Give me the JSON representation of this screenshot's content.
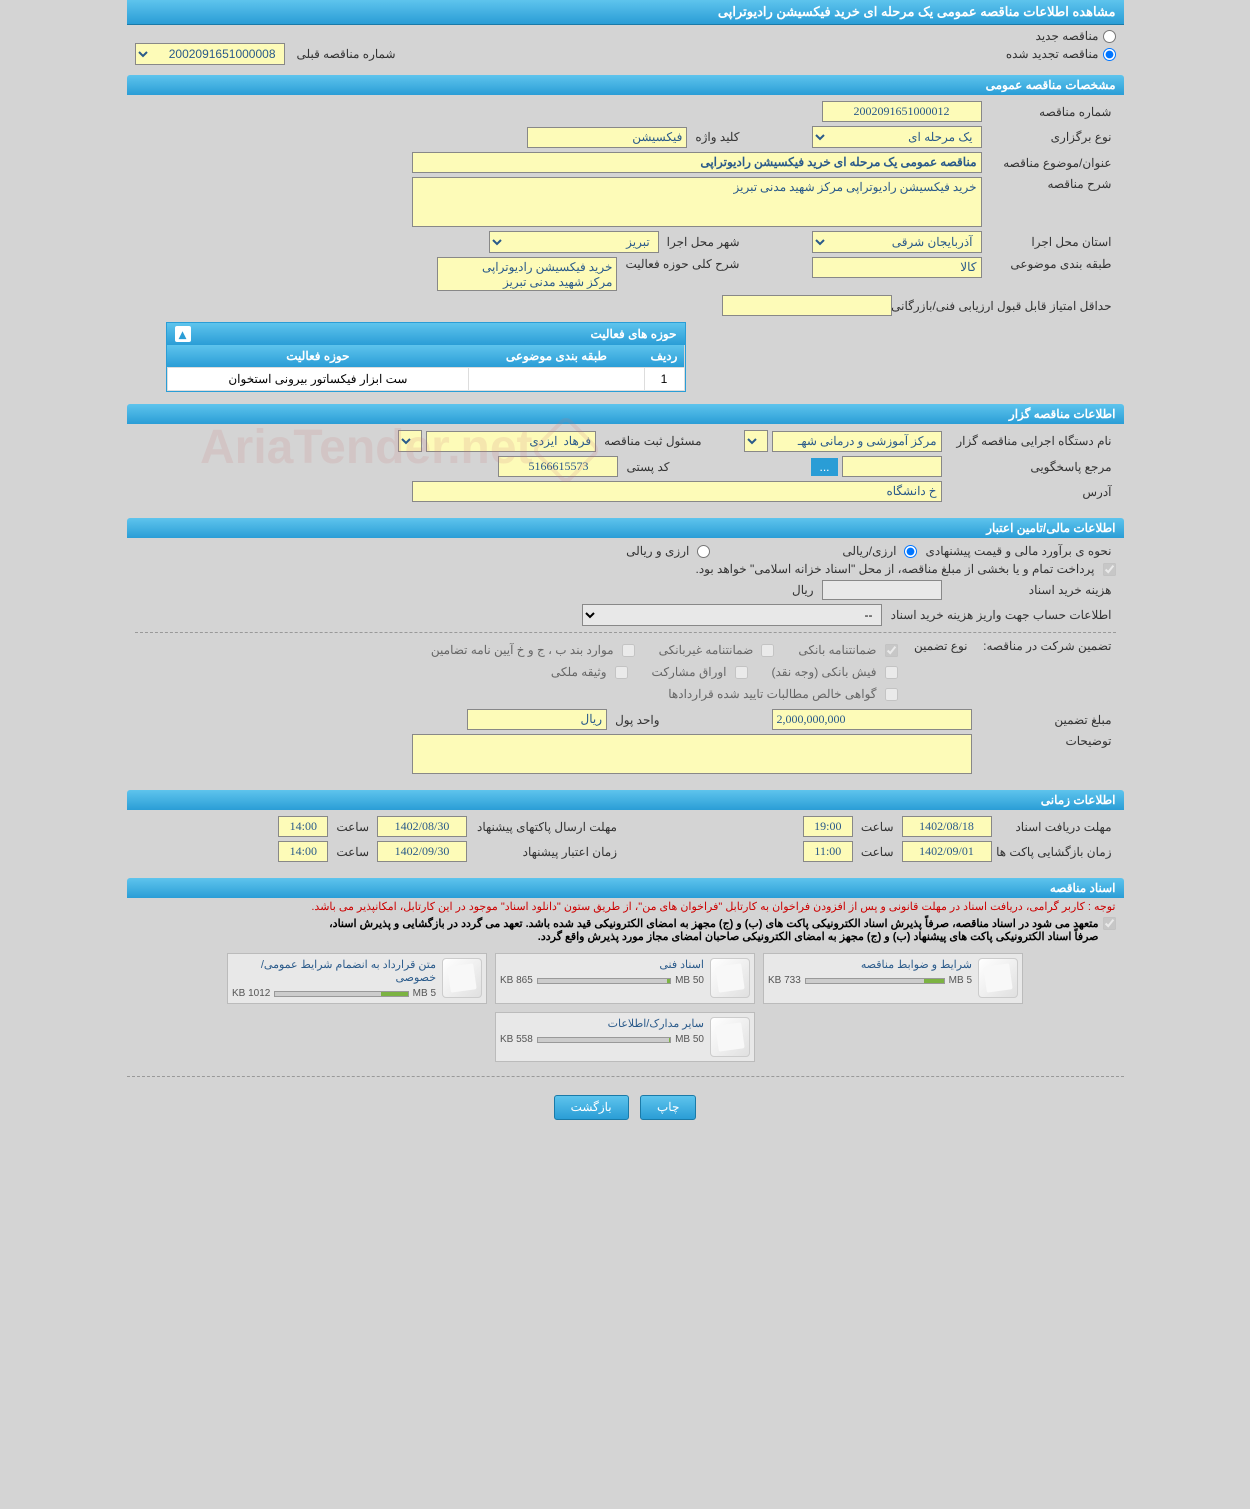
{
  "header": {
    "title": "مشاهده اطلاعات مناقصه عمومی یک مرحله ای خرید فیکسیشن رادیوتراپی"
  },
  "top_radios": {
    "new": "مناقصه جدید",
    "renewed": "مناقصه تجدید شده",
    "selected": "renewed",
    "prev_label": "شماره مناقصه قبلی",
    "prev_value": "2002091651000008"
  },
  "sections": {
    "general": "مشخصات مناقصه عمومی",
    "holder": "اطلاعات مناقصه گزار",
    "financial": "اطلاعات مالی/تامین اعتبار",
    "timing": "اطلاعات زمانی",
    "docs": "اسناد مناقصه"
  },
  "general": {
    "tender_no_label": "شماره مناقصه",
    "tender_no": "2002091651000012",
    "type_label": "نوع برگزاری",
    "type": "یک مرحله ای",
    "keyword_label": "کلید واژه",
    "keyword": "فیکسیشن",
    "subject_label": "عنوان/موضوع مناقصه",
    "subject": "مناقصه عمومی یک مرحله ای خرید فیکسیشن رادیوتراپی",
    "desc_label": "شرح مناقصه",
    "desc": "خرید فیکسیشن رادیوتراپی مرکز شهید مدنی تبریز",
    "province_label": "استان محل اجرا",
    "province": "آذربایجان شرقی",
    "city_label": "شهر محل اجرا",
    "city": "تبریز",
    "category_label": "طبقه بندی موضوعی",
    "category": "کالا",
    "scope_label": "شرح کلی حوزه فعالیت",
    "scope": "خرید فیکسیشن رادیوتراپی\nمرکز شهید مدنی تبریز",
    "min_score_label": "حداقل امتیاز قابل قبول ارزیابی فنی/بازرگانی",
    "min_score": ""
  },
  "activity_panel": {
    "title": "حوزه های فعالیت",
    "col_row": "ردیف",
    "col_cat": "طبقه بندی موضوعی",
    "col_scope": "حوزه فعالیت",
    "rows": [
      {
        "n": "1",
        "cat": "",
        "scope": "ست ابزار فیکساتور بیرونی استخوان"
      }
    ]
  },
  "holder": {
    "org_label": "نام دستگاه اجرایی مناقصه گزار",
    "org": "مرکز آموزشی و درمانی شهـ",
    "reg_resp_label": "مسئول ثبت مناقصه",
    "reg_resp": "فرهاد  ایزدی",
    "resp_label": "مرجع پاسخگویی",
    "resp": "",
    "more_btn": "...",
    "postal_label": "کد پستی",
    "postal": "5166615573",
    "address_label": "آدرس",
    "address": "خ دانشگاه"
  },
  "financial": {
    "method_label": "نحوه ی برآورد مالی و قیمت پیشنهادی",
    "method_riali": "ارزی/ریالی",
    "method_arzi": "ارزی و ریالی",
    "method_selected": "riali",
    "treasury_note": "پرداخت تمام و یا بخشی از مبلغ مناقصه، از محل \"اسناد خزانه اسلامی\" خواهد بود.",
    "cost_label": "هزینه خرید اسناد",
    "cost": "",
    "cost_unit": "ریال",
    "account_label": "اطلاعات حساب جهت واریز هزینه خرید اسناد",
    "account_selected": "--",
    "guarantee_section_label": "تضمین شرکت در مناقصه:",
    "guarantee_type_label": "نوع تضمین",
    "g_bank": "ضمانتنامه بانکی",
    "g_nonbank": "ضمانتنامه غیربانکی",
    "g_bylaw": "موارد بند ب ، ج و خ آیین نامه تضامین",
    "g_cash": "فیش بانکی (وجه نقد)",
    "g_securities": "اوراق مشارکت",
    "g_property": "وثیقه ملکی",
    "g_receivables": "گواهی خالص مطالبات تایید شده قراردادها",
    "amount_label": "مبلغ تضمین",
    "amount": "2,000,000,000",
    "currency_label": "واحد پول",
    "currency": "ریال",
    "notes_label": "توضیحات",
    "notes": ""
  },
  "timing": {
    "receive_label": "مهلت دریافت اسناد",
    "receive_date": "1402/08/18",
    "receive_time_label": "ساعت",
    "receive_time": "19:00",
    "send_label": "مهلت ارسال پاکتهای پیشنهاد",
    "send_date": "1402/08/30",
    "send_time_label": "ساعت",
    "send_time": "14:00",
    "open_label": "زمان بازگشایی پاکت ها",
    "open_date": "1402/09/01",
    "open_time_label": "ساعت",
    "open_time": "11:00",
    "valid_label": "زمان اعتبار پیشنهاد",
    "valid_date": "1402/09/30",
    "valid_time_label": "ساعت",
    "valid_time": "14:00"
  },
  "docs": {
    "note_red": "توجه : کاربر گرامی، دریافت اسناد در مهلت قانونی و پس از افزودن فراخوان به کارتابل \"فراخوان های من\"، از طریق ستون \"دانلود اسناد\" موجود در این کارتابل، امکانپذیر می باشد.",
    "note_black1": "متعهد می شود در اسناد مناقصه، صرفاً پذیرش اسناد الکترونیکی پاکت های (ب) و (ج) مجهز به امضای الکترونیکی قید شده باشد. تعهد می گردد در بازگشایی و پذیرش اسناد،",
    "note_black2": "صرفاً اسناد الکترونیکی پاکت های پیشنهاد (ب) و (ج) مجهز به امضای الکترونیکی صاحبان امضای مجاز مورد پذیرش واقع گردد.",
    "items": [
      {
        "title": "شرایط و ضوابط مناقصه",
        "used": "733 KB",
        "total": "5 MB",
        "pct": 14
      },
      {
        "title": "اسناد فنی",
        "used": "865 KB",
        "total": "50 MB",
        "pct": 2
      },
      {
        "title": "متن قرارداد به انضمام شرایط عمومی/خصوصی",
        "used": "1012 KB",
        "total": "5 MB",
        "pct": 20
      },
      {
        "title": "سایر مدارک/اطلاعات",
        "used": "558 KB",
        "total": "50 MB",
        "pct": 1
      }
    ]
  },
  "buttons": {
    "print": "چاپ",
    "back": "بازگشت"
  },
  "watermark": "AriaTender.net"
}
